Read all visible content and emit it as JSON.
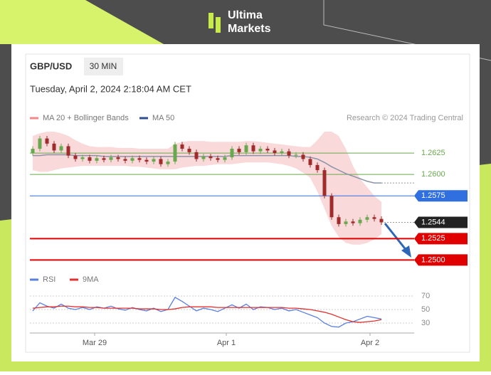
{
  "brand": {
    "line1": "Ultima",
    "line2": "Markets"
  },
  "chart_data": {
    "type": "candlestick",
    "symbol": "GBP/USD",
    "timeframe": "30 MIN",
    "subtitle": "Tuesday, April 2, 2024 2:18:04 AM CET",
    "credit": "Research © 2024 Trading Central",
    "legend": [
      {
        "name": "MA 20 + Bollinger Bands",
        "color": "#f08a8a"
      },
      {
        "name": "MA 50",
        "color": "#2f4f8f"
      }
    ],
    "open": [
      1.2625,
      1.263,
      1.2642,
      1.2636,
      1.2628,
      1.2633,
      1.2622,
      1.2618,
      1.262,
      1.2616,
      1.2619,
      1.2617,
      1.262,
      1.2618,
      1.2616,
      1.2619,
      1.2617,
      1.2615,
      1.2618,
      1.2612,
      1.2615,
      1.2635,
      1.263,
      1.2626,
      1.2618,
      1.2621,
      1.2619,
      1.2617,
      1.262,
      1.263,
      1.2626,
      1.2634,
      1.2627,
      1.263,
      1.2628,
      1.2625,
      1.2627,
      1.2622,
      1.2623,
      1.2618,
      1.2611,
      1.2605,
      1.2575,
      1.255,
      1.2542,
      1.2545,
      1.2543,
      1.2547,
      1.255,
      1.2548
    ],
    "high": [
      1.2633,
      1.2645,
      1.2645,
      1.2639,
      1.2636,
      1.2636,
      1.2625,
      1.2623,
      1.2623,
      1.2622,
      1.2622,
      1.2623,
      1.2623,
      1.2621,
      1.2622,
      1.2622,
      1.262,
      1.2621,
      1.2621,
      1.2618,
      1.2638,
      1.2638,
      1.2633,
      1.2629,
      1.2624,
      1.2624,
      1.2622,
      1.2623,
      1.2633,
      1.2633,
      1.2637,
      1.2637,
      1.2633,
      1.2633,
      1.2631,
      1.263,
      1.263,
      1.2626,
      1.2626,
      1.2621,
      1.2614,
      1.2608,
      1.2578,
      1.2553,
      1.2548,
      1.2548,
      1.255,
      1.2553,
      1.2553,
      1.2551
    ],
    "low": [
      1.2622,
      1.2627,
      1.2633,
      1.2625,
      1.2625,
      1.2619,
      1.2615,
      1.2615,
      1.2613,
      1.2613,
      1.2614,
      1.2614,
      1.2615,
      1.2613,
      1.2613,
      1.2614,
      1.2612,
      1.2612,
      1.2609,
      1.2609,
      1.2612,
      1.2627,
      1.2623,
      1.2615,
      1.2615,
      1.2616,
      1.2614,
      1.2614,
      1.2617,
      1.2623,
      1.2623,
      1.2624,
      1.2624,
      1.2625,
      1.2622,
      1.2622,
      1.2619,
      1.2619,
      1.2615,
      1.2608,
      1.2602,
      1.2572,
      1.2547,
      1.2539,
      1.2539,
      1.254,
      1.254,
      1.2544,
      1.2545,
      1.2541
    ],
    "close": [
      1.263,
      1.2642,
      1.2636,
      1.2628,
      1.2633,
      1.2622,
      1.2618,
      1.262,
      1.2616,
      1.2619,
      1.2617,
      1.262,
      1.2618,
      1.2616,
      1.2619,
      1.2617,
      1.2615,
      1.2618,
      1.2612,
      1.2615,
      1.2635,
      1.263,
      1.2626,
      1.2618,
      1.2621,
      1.2619,
      1.2617,
      1.262,
      1.263,
      1.2626,
      1.2634,
      1.2627,
      1.263,
      1.2628,
      1.2625,
      1.2627,
      1.2622,
      1.2623,
      1.2618,
      1.2611,
      1.2605,
      1.2575,
      1.255,
      1.2542,
      1.2545,
      1.2543,
      1.2547,
      1.255,
      1.2548,
      1.2544
    ],
    "band_upper": [
      1.2645,
      1.2648,
      1.265,
      1.265,
      1.2648,
      1.2645,
      1.264,
      1.2636,
      1.2633,
      1.2632,
      1.2632,
      1.2632,
      1.2631,
      1.2631,
      1.2631,
      1.263,
      1.263,
      1.263,
      1.263,
      1.263,
      1.2636,
      1.2638,
      1.2639,
      1.2639,
      1.2639,
      1.2638,
      1.2638,
      1.2638,
      1.2638,
      1.2638,
      1.2639,
      1.2639,
      1.2638,
      1.2637,
      1.2636,
      1.2635,
      1.2634,
      1.2633,
      1.2632,
      1.2632,
      1.264,
      1.265,
      1.265,
      1.2645,
      1.263,
      1.261,
      1.2595,
      1.2585,
      1.2575,
      1.2568
    ],
    "band_lower": [
      1.2605,
      1.2603,
      1.2603,
      1.2605,
      1.2607,
      1.2608,
      1.2609,
      1.261,
      1.261,
      1.261,
      1.261,
      1.261,
      1.261,
      1.261,
      1.2609,
      1.2609,
      1.2608,
      1.2607,
      1.2606,
      1.2606,
      1.2606,
      1.2608,
      1.2609,
      1.261,
      1.261,
      1.2611,
      1.2612,
      1.2612,
      1.2612,
      1.2613,
      1.2614,
      1.2614,
      1.2614,
      1.2614,
      1.2613,
      1.2612,
      1.261,
      1.2607,
      1.2602,
      1.2596,
      1.258,
      1.256,
      1.254,
      1.2527,
      1.252,
      1.2518,
      1.2518,
      1.252,
      1.2524,
      1.253
    ],
    "ma50": [
      1.2622,
      1.2622,
      1.2623,
      1.2623,
      1.2623,
      1.2623,
      1.2622,
      1.2622,
      1.2622,
      1.2622,
      1.2621,
      1.2621,
      1.2621,
      1.2621,
      1.2621,
      1.2621,
      1.2621,
      1.2621,
      1.2621,
      1.2621,
      1.2621,
      1.2621,
      1.2621,
      1.2621,
      1.2621,
      1.2621,
      1.2621,
      1.2621,
      1.2622,
      1.2622,
      1.2622,
      1.2622,
      1.2622,
      1.2622,
      1.2622,
      1.2622,
      1.2622,
      1.2621,
      1.2621,
      1.262,
      1.2618,
      1.2614,
      1.2609,
      1.2605,
      1.2601,
      1.2598,
      1.2595,
      1.2592,
      1.259,
      1.259
    ],
    "ylim": [
      1.2492,
      1.265
    ],
    "levels": [
      {
        "value": 1.2625,
        "label": "1.2625",
        "color": "#6aa84f",
        "tag": false
      },
      {
        "value": 1.26,
        "label": "1.2600",
        "color": "#6aa84f",
        "tag": false
      },
      {
        "value": 1.2575,
        "label": "1.2575",
        "color": "#2f6fe0",
        "tag": true
      },
      {
        "value": 1.2544,
        "label": "1.2544",
        "color": "#222222",
        "tag": true
      },
      {
        "value": 1.2525,
        "label": "1.2525",
        "color": "#e00000",
        "tag": true
      },
      {
        "value": 1.25,
        "label": "1.2500",
        "color": "#e00000",
        "tag": true
      }
    ],
    "xticks": [
      {
        "value": 8.7,
        "label": "Mar 29"
      },
      {
        "value": 27.2,
        "label": "Apr 1"
      },
      {
        "value": 47.4,
        "label": "Apr 2"
      }
    ],
    "rsi_panel": {
      "legend": [
        {
          "name": "RSI",
          "color": "#5b7fdc"
        },
        {
          "name": "9MA",
          "color": "#e03030"
        }
      ],
      "ylim": [
        20,
        80
      ],
      "yticks": [
        70,
        50,
        30
      ],
      "rsi": [
        48,
        60,
        55,
        52,
        58,
        52,
        50,
        53,
        50,
        54,
        52,
        55,
        51,
        49,
        53,
        50,
        48,
        52,
        47,
        50,
        68,
        62,
        55,
        48,
        52,
        50,
        47,
        52,
        57,
        52,
        58,
        50,
        54,
        53,
        50,
        52,
        48,
        50,
        46,
        42,
        38,
        30,
        25,
        24,
        30,
        32,
        36,
        40,
        38,
        36
      ],
      "ma9": [
        52,
        53,
        54,
        54,
        55,
        55,
        54,
        54,
        53,
        53,
        52,
        52,
        52,
        52,
        52,
        51,
        51,
        51,
        50,
        50,
        51,
        53,
        54,
        54,
        54,
        54,
        53,
        53,
        53,
        53,
        53,
        53,
        53,
        53,
        53,
        53,
        52,
        52,
        51,
        50,
        48,
        46,
        43,
        39,
        35,
        32,
        31,
        32,
        33,
        35
      ]
    }
  }
}
